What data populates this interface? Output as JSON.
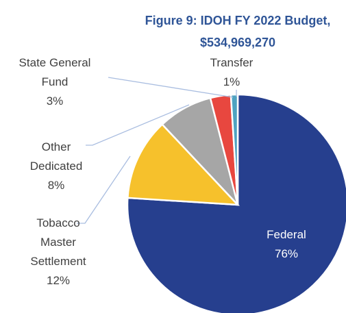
{
  "chart_data": {
    "type": "pie",
    "title": "Figure 9: IDOH FY 2022 Budget, $534,969,270",
    "categories": [
      "Federal",
      "Tobacco Master Settlement",
      "Other Dedicated",
      "State General Fund",
      "Transfer"
    ],
    "values": [
      76,
      12,
      8,
      3,
      1
    ],
    "value_labels": [
      "76%",
      "12%",
      "8%",
      "3%",
      "1%"
    ],
    "colors": [
      "#263f8e",
      "#f6c12c",
      "#a6a6a6",
      "#e8473f",
      "#4fa3c1"
    ]
  }
}
